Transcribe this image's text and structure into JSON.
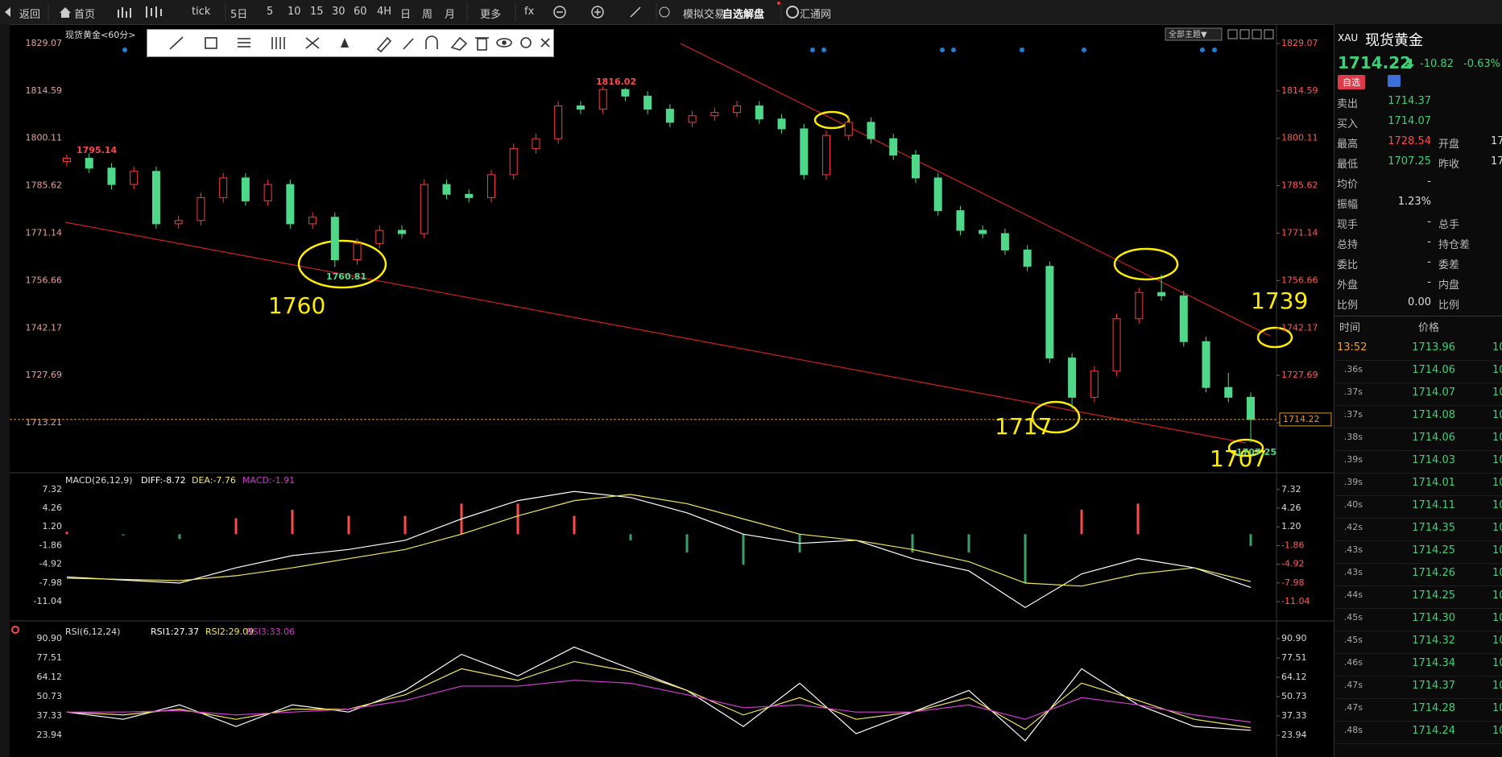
{
  "toolbar": {
    "items": [
      "返回",
      "首页",
      "tick",
      "5日",
      "5",
      "10",
      "15",
      "30",
      "60",
      "4H",
      "日",
      "周",
      "月",
      "更多",
      "fx",
      "模拟交易",
      "自选解盘",
      "汇通网"
    ]
  },
  "chart_label": "现货黄金<60分>",
  "theme_button": "全部主题▼",
  "chart_data": [
    {
      "type": "candlestick",
      "ohlc": [
        [
          1793,
          1795.14,
          1791.5,
          1794
        ],
        [
          1794,
          1795.5,
          1789.5,
          1791
        ],
        [
          1791,
          1792.5,
          1784.5,
          1786
        ],
        [
          1786,
          1791.5,
          1784.5,
          1790
        ],
        [
          1790,
          1791.5,
          1772.5,
          1774
        ],
        [
          1774,
          1776.5,
          1772.5,
          1775
        ],
        [
          1775,
          1783.5,
          1773.5,
          1782
        ],
        [
          1782,
          1789.5,
          1780.5,
          1788
        ],
        [
          1788,
          1789.5,
          1779.5,
          1781
        ],
        [
          1781,
          1787.5,
          1779.5,
          1786
        ],
        [
          1786,
          1787.5,
          1772.5,
          1774
        ],
        [
          1774,
          1777.5,
          1772.5,
          1776
        ],
        [
          1776,
          1777.5,
          1760.81,
          1763
        ],
        [
          1763,
          1769.5,
          1761.5,
          1768
        ],
        [
          1768,
          1773.5,
          1766.5,
          1772
        ],
        [
          1772,
          1773.5,
          1769.5,
          1771
        ],
        [
          1771,
          1787.5,
          1769.5,
          1786
        ],
        [
          1786,
          1787.5,
          1781.5,
          1783
        ],
        [
          1783,
          1784.5,
          1780.5,
          1782
        ],
        [
          1782,
          1790.5,
          1780.5,
          1789
        ],
        [
          1789,
          1798.5,
          1787.5,
          1797
        ],
        [
          1797,
          1801.5,
          1795.5,
          1800
        ],
        [
          1800,
          1811.5,
          1798.5,
          1810
        ],
        [
          1810,
          1811.5,
          1807.5,
          1809
        ],
        [
          1809,
          1816.02,
          1807.5,
          1815
        ],
        [
          1815,
          1815.5,
          1811.5,
          1813
        ],
        [
          1813,
          1814.5,
          1807.5,
          1809
        ],
        [
          1809,
          1810.5,
          1803.5,
          1805
        ],
        [
          1805,
          1808.5,
          1803.5,
          1807
        ],
        [
          1807,
          1809.5,
          1805.5,
          1808
        ],
        [
          1808,
          1811.5,
          1806.5,
          1810
        ],
        [
          1810,
          1811.5,
          1804.5,
          1806
        ],
        [
          1806,
          1807.5,
          1801.5,
          1803
        ],
        [
          1803,
          1804.5,
          1787.5,
          1789
        ],
        [
          1789,
          1802.5,
          1787.5,
          1801
        ],
        [
          1801,
          1806.5,
          1799.5,
          1805
        ],
        [
          1805,
          1806.5,
          1798.5,
          1800
        ],
        [
          1800,
          1801.5,
          1793.5,
          1795
        ],
        [
          1795,
          1796.5,
          1786.5,
          1788
        ],
        [
          1788,
          1789.5,
          1776.5,
          1778
        ],
        [
          1778,
          1779.5,
          1770.5,
          1772
        ],
        [
          1772,
          1773.5,
          1769.5,
          1771
        ],
        [
          1771,
          1772.5,
          1764.5,
          1766
        ],
        [
          1766,
          1767.5,
          1759.5,
          1761
        ],
        [
          1761,
          1762.5,
          1731.5,
          1733
        ],
        [
          1733,
          1734.5,
          1717.5,
          1721
        ],
        [
          1721,
          1730.5,
          1719.5,
          1729
        ],
        [
          1729,
          1746.5,
          1727.5,
          1745
        ],
        [
          1745,
          1754.5,
          1743.5,
          1753
        ],
        [
          1753,
          1758.5,
          1750.5,
          1752
        ],
        [
          1752,
          1753.5,
          1736.5,
          1738
        ],
        [
          1738,
          1739.5,
          1722.5,
          1724
        ],
        [
          1724,
          1728.5,
          1719.5,
          1721
        ],
        [
          1721,
          1722.5,
          1707.25,
          1714.22
        ]
      ],
      "up_color": "#ff3b3b",
      "down_color": "#4fd88a",
      "ylim": [
        1698.2,
        1833.5
      ],
      "yticks": [
        1829.07,
        1814.59,
        1800.11,
        1785.62,
        1771.14,
        1756.66,
        1742.17,
        1727.69,
        1713.21
      ],
      "last_price": 1714.22,
      "annotations": [
        "1795.14",
        "1816.02",
        "1760.81",
        "1760",
        "1717",
        "1707",
        "1739",
        "1707.25"
      ]
    },
    {
      "type": "macd",
      "title": "MACD(26,12,9)",
      "series": [
        {
          "name": "DIFF:-8.72",
          "color": "#ffffff",
          "values": [
            -7.0,
            -7.5,
            -8.0,
            -5.5,
            -3.5,
            -2.5,
            -1.0,
            2.5,
            5.5,
            7.0,
            6.0,
            3.5,
            0.0,
            -1.5,
            -1.0,
            -4.0,
            -6.0,
            -12.0,
            -6.5,
            -4.0,
            -5.5,
            -8.72
          ]
        },
        {
          "name": "DEA:-7.76",
          "color": "#f2e85a",
          "values": [
            -7.2,
            -7.4,
            -7.6,
            -6.8,
            -5.5,
            -4.0,
            -2.5,
            0.0,
            3.0,
            5.5,
            6.5,
            5.0,
            2.5,
            0.0,
            -1.0,
            -2.5,
            -4.5,
            -8.0,
            -8.5,
            -6.5,
            -5.5,
            -7.76
          ]
        },
        {
          "name": "MACD:-1.91",
          "color": "#d23ad2",
          "bar_colors": [
            "#ff4a4a",
            "#3aa06a"
          ],
          "values": [
            0.4,
            -0.2,
            -0.8,
            2.6,
            4.0,
            3.0,
            3.0,
            5.0,
            5.0,
            3.0,
            -1.0,
            -3.0,
            -5.0,
            -3.0,
            0.0,
            -3.0,
            -3.0,
            -8.0,
            4.0,
            5.0,
            0.0,
            -1.91
          ]
        }
      ],
      "ylim": [
        -13.8,
        9.8
      ],
      "yticks": [
        7.32,
        4.26,
        {
          "value": 1.2,
          "label": "1.20"
        },
        -1.86,
        -4.92,
        -7.98,
        -11.04
      ]
    },
    {
      "type": "line",
      "title": "RSI(6,12,24)",
      "series": [
        {
          "name": "RSI1:27.37",
          "color": "#ffffff",
          "values": [
            40,
            35,
            45,
            30,
            45,
            40,
            55,
            80,
            65,
            85,
            70,
            55,
            30,
            60,
            25,
            40,
            55,
            20,
            70,
            45,
            30,
            27.37
          ]
        },
        {
          "name": "RSI2:29.09",
          "color": "#f2e85a",
          "values": [
            40,
            38,
            42,
            35,
            42,
            42,
            52,
            70,
            62,
            75,
            68,
            55,
            38,
            50,
            35,
            40,
            50,
            28,
            60,
            48,
            35,
            29.09
          ]
        },
        {
          "name": "RSI3:33.06",
          "color": "#d23ad2",
          "values": [
            40,
            40,
            41,
            38,
            40,
            42,
            48,
            58,
            58,
            62,
            60,
            52,
            43,
            45,
            40,
            40,
            45,
            35,
            50,
            45,
            38,
            33.06
          ]
        }
      ],
      "ylim": [
        8.87,
        99.8
      ],
      "yticks": [
        {
          "value": 90.9,
          "label": "90.90"
        },
        77.51,
        64.12,
        50.73,
        37.33,
        23.94
      ]
    }
  ],
  "quote": {
    "symbol": "XAU",
    "name": "现货黄金",
    "price": "1714.22",
    "change": "-10.82",
    "percent": "-0.63%",
    "tag": "自选",
    "stats": [
      {
        "label": "卖出",
        "value": "1714.37"
      },
      {
        "label": "买入",
        "value": "1714.07"
      },
      {
        "label": "最高",
        "value": "1728.54",
        "label2": "开盘",
        "value2": "17"
      },
      {
        "label": "最低",
        "value": "1707.25",
        "label2": "昨收",
        "value2": "17"
      },
      {
        "label": "均价",
        "value": "-"
      },
      {
        "label": "振幅",
        "value": "1.23%"
      },
      {
        "label": "现手",
        "value": "-",
        "label2": "总手"
      },
      {
        "label": "总持",
        "value": "-",
        "label2": "持仓差"
      },
      {
        "label": "委比",
        "value": "-",
        "label2": "委差"
      },
      {
        "label": "外盘",
        "value": "-",
        "label2": "内盘"
      },
      {
        "label": "比例",
        "value": "0.00",
        "label2": "比例"
      }
    ]
  },
  "ticks_table": {
    "header": [
      "时间",
      "价格"
    ],
    "rows": [
      [
        "13:52",
        "1713.96",
        "10"
      ],
      [
        ".36s",
        "1714.06",
        "10"
      ],
      [
        ".37s",
        "1714.07",
        "10"
      ],
      [
        ".37s",
        "1714.08",
        "10"
      ],
      [
        ".38s",
        "1714.06",
        "10"
      ],
      [
        ".39s",
        "1714.03",
        "10"
      ],
      [
        ".39s",
        "1714.01",
        "10"
      ],
      [
        ".40s",
        "1714.11",
        "10"
      ],
      [
        ".42s",
        "1714.35",
        "10"
      ],
      [
        ".43s",
        "1714.25",
        "10"
      ],
      [
        ".43s",
        "1714.26",
        "10"
      ],
      [
        ".44s",
        "1714.25",
        "10"
      ],
      [
        ".45s",
        "1714.30",
        "10"
      ],
      [
        ".45s",
        "1714.32",
        "10"
      ],
      [
        ".46s",
        "1714.34",
        "10"
      ],
      [
        ".47s",
        "1714.37",
        "10"
      ],
      [
        ".47s",
        "1714.28",
        "10"
      ],
      [
        ".48s",
        "1714.24",
        "10"
      ]
    ]
  }
}
